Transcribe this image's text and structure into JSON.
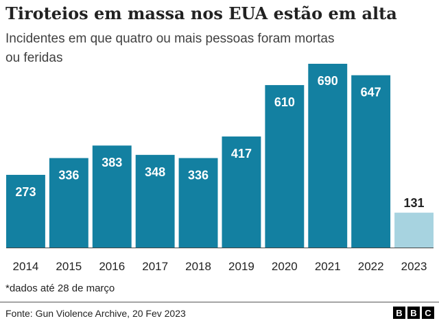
{
  "chart_data": {
    "type": "bar",
    "title": "Tiroteios em massa nos EUA estão em alta",
    "subtitle": [
      "Incidentes em que quatro ou mais pessoas foram mortas",
      "ou feridas"
    ],
    "categories": [
      "2014",
      "2015",
      "2016",
      "2017",
      "2018",
      "2019",
      "2020",
      "2021",
      "2022",
      "2023"
    ],
    "values": [
      273,
      336,
      383,
      348,
      336,
      417,
      610,
      690,
      647,
      131
    ],
    "colors": [
      "#1380a1",
      "#1380a1",
      "#1380a1",
      "#1380a1",
      "#1380a1",
      "#1380a1",
      "#1380a1",
      "#1380a1",
      "#1380a1",
      "#a7d3e0"
    ],
    "footnote": "*dados até 28 de março",
    "source": "Fonte: Gun Violence Archive, 20 Fev 2023",
    "logo": [
      "B",
      "B",
      "C"
    ]
  }
}
